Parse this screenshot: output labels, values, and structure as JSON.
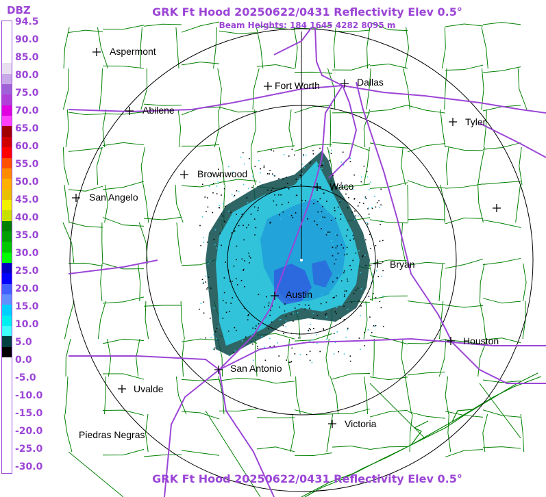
{
  "header": {
    "title": "GRK Ft Hood 20250622/0431 Reflectivity Elev 0.5°",
    "subtitle": "Beam Heights: 184 1645 4282 8095 m",
    "footer_title": "GRK Ft Hood 20250622/0431 Reflectivity Elev 0.5°"
  },
  "scale": {
    "unit": "DBZ",
    "labels": [
      "94.5",
      "90.0",
      "85.0",
      "80.0",
      "75.0",
      "70.0",
      "65.0",
      "60.0",
      "55.0",
      "50.0",
      "45.0",
      "40.0",
      "35.0",
      "30.0",
      "25.0",
      "20.0",
      "15.0",
      "10.0",
      "5.0",
      "0.0",
      "-5.0",
      "-10.0",
      "-15.0",
      "-20.0",
      "-25.0",
      "-30.0"
    ],
    "colors": [
      "#ffffff",
      "#ffffff",
      "#ffffff",
      "#ffffff",
      "#e8e0f0",
      "#c8a8e8",
      "#a060d8",
      "#b040d8",
      "#e000e0",
      "#ff40ff",
      "#a00000",
      "#d00000",
      "#ff0000",
      "#ff5000",
      "#ff8c00",
      "#ffb000",
      "#e8c000",
      "#f0f000",
      "#c8e000",
      "#008000",
      "#00a000",
      "#00c800",
      "#00ff00",
      "#0000c0",
      "#0000ff",
      "#4060ff",
      "#6090ff",
      "#00d0ff",
      "#00f0f0",
      "#40ffff",
      "#004040",
      "#000000",
      "#ffffff",
      "#ffffff",
      "#ffffff",
      "#ffffff",
      "#ffffff",
      "#ffffff",
      "#ffffff",
      "#ffffff",
      "#ffffff",
      "#ffffff",
      "#ffffff"
    ]
  },
  "map": {
    "colors": {
      "county": "#008000",
      "highway": "#9b45d6",
      "ring": "#000000",
      "echo_light": "#30c8e0",
      "echo_medium": "#1888d8",
      "echo_heavy": "#3050e0",
      "echo_edge": "#0a4a4a"
    },
    "cities": [
      {
        "name": "Aspermont",
        "marker": "plus"
      },
      {
        "name": "Fort Worth",
        "marker": "plus"
      },
      {
        "name": "Dallas",
        "marker": "plus"
      },
      {
        "name": "Abilene",
        "marker": "plus"
      },
      {
        "name": "Tyler",
        "marker": "plus"
      },
      {
        "name": "Brownwood",
        "marker": "plus"
      },
      {
        "name": "Waco",
        "marker": "plus"
      },
      {
        "name": "San Angelo",
        "marker": "plus"
      },
      {
        "name": "Bryan",
        "marker": "plus"
      },
      {
        "name": "Austin",
        "marker": "plus"
      },
      {
        "name": "Houston",
        "marker": "plus"
      },
      {
        "name": "San Antonio",
        "marker": "plus"
      },
      {
        "name": "Uvalde",
        "marker": "plus"
      },
      {
        "name": "Victoria",
        "marker": "plus"
      },
      {
        "name": "Piedras Negras",
        "marker": "none"
      }
    ]
  }
}
